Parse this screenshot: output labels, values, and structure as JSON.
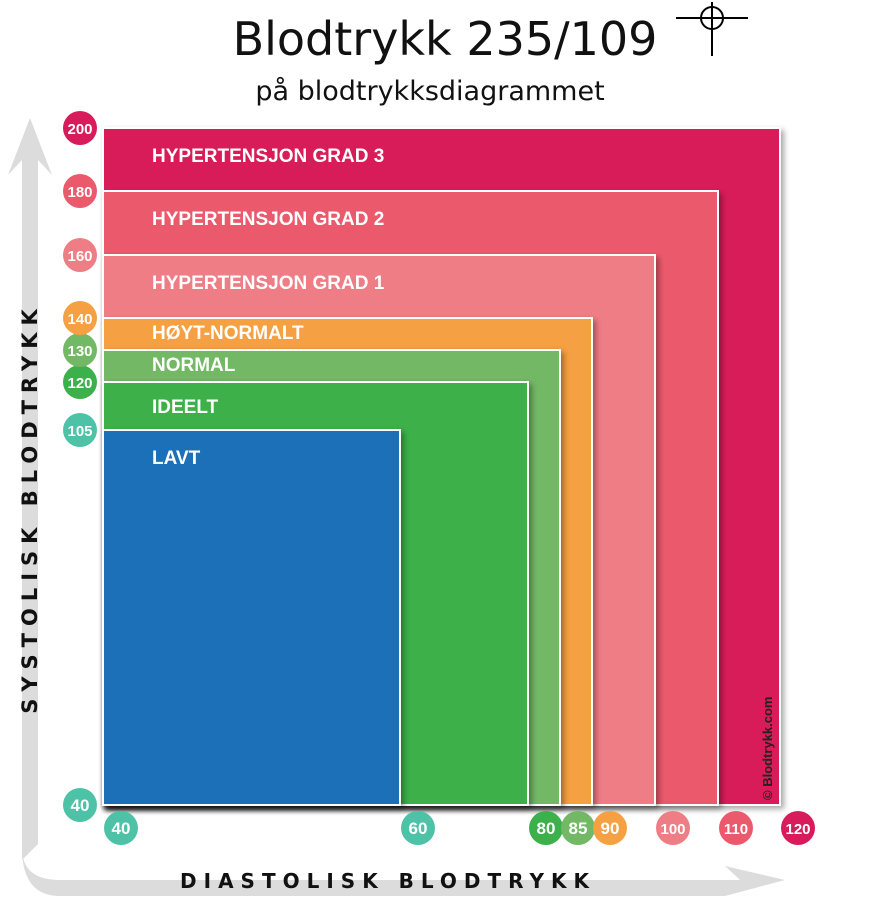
{
  "header": {
    "title": "Blodtrykk 235/109",
    "subtitle": "på blodtrykksdiagrammet"
  },
  "icons": {
    "marker": "crosshair-target-icon"
  },
  "chart_data": {
    "type": "area",
    "title": "Blodtrykk 235/109",
    "subtitle": "på blodtrykksdiagrammet",
    "xlabel": "DIASTOLISK BLODTRYKK",
    "ylabel": "SYSTOLISK BLODTRYKK",
    "x_ticks": [
      40,
      60,
      80,
      85,
      90,
      100,
      110,
      120
    ],
    "y_ticks": [
      40,
      105,
      120,
      130,
      140,
      160,
      180,
      200
    ],
    "xlim": [
      40,
      120
    ],
    "ylim": [
      40,
      200
    ],
    "regions": [
      {
        "label": "HYPERTENSJON GRAD 3",
        "x_max": 120,
        "y_max": 200,
        "color": "#d81b5a"
      },
      {
        "label": "HYPERTENSJON GRAD 2",
        "x_max": 110,
        "y_max": 180,
        "color": "#ea5a6c"
      },
      {
        "label": "HYPERTENSJON GRAD 1",
        "x_max": 100,
        "y_max": 160,
        "color": "#ef7d85"
      },
      {
        "label": "HØYT-NORMALT",
        "x_max": 90,
        "y_max": 140,
        "color": "#f5a042"
      },
      {
        "label": "NORMAL",
        "x_max": 85,
        "y_max": 130,
        "color": "#73b865"
      },
      {
        "label": "IDEELT",
        "x_max": 80,
        "y_max": 120,
        "color": "#3cb04a"
      },
      {
        "label": "LAVT",
        "x_max": 60,
        "y_max": 105,
        "color": "#1f70b8"
      }
    ],
    "x_tick_colors": [
      "#4dc2a7",
      "#4dc2a7",
      "#3cb04a",
      "#73b865",
      "#f5a042",
      "#ef7d85",
      "#ea5a6c",
      "#d81b5a"
    ],
    "y_tick_colors": [
      "#4dc2a7",
      "#4dc2a7",
      "#3cb04a",
      "#73b865",
      "#f5a042",
      "#ef7d85",
      "#ea5a6c",
      "#d81b5a"
    ],
    "reading": {
      "systolic": 235,
      "diastolic": 109
    },
    "watermark": "© Blodtrykk.com",
    "grid": false,
    "legend": "none"
  }
}
